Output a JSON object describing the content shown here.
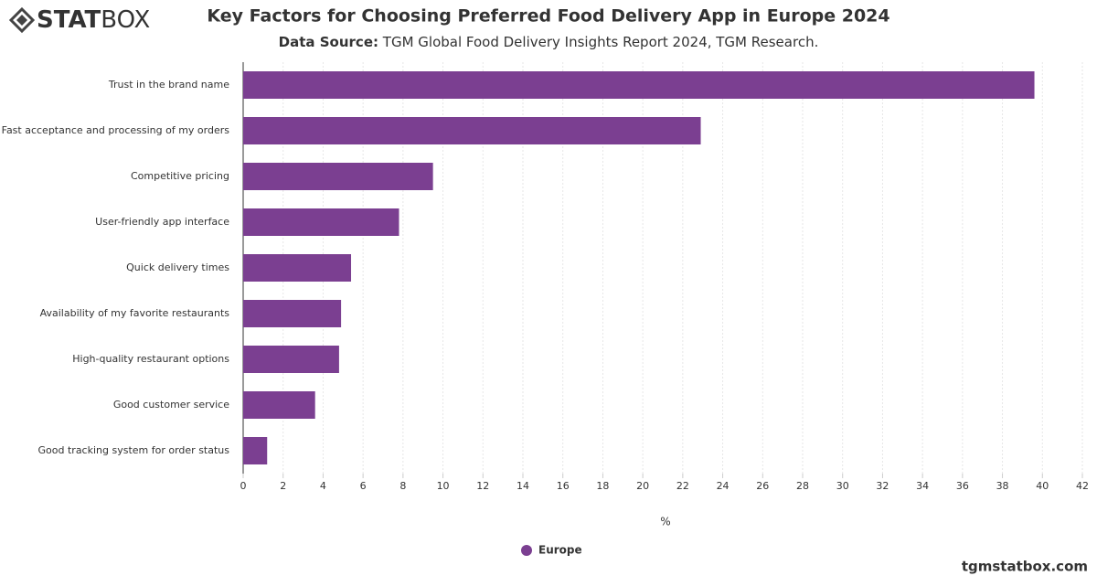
{
  "logo": {
    "bold": "STAT",
    "light": "BOX"
  },
  "footer": "tgmstatbox.com",
  "chart_data": {
    "type": "bar",
    "orientation": "horizontal",
    "title": "Key Factors for Choosing Preferred Food Delivery App in Europe 2024",
    "subtitle_label": "Data Source:",
    "subtitle": "TGM Global Food Delivery Insights Report 2024, TGM Research.",
    "x_label": "%",
    "categories": [
      "Trust in the brand name",
      "Fast acceptance and processing of my orders",
      "Competitive pricing",
      "User-friendly app interface",
      "Quick delivery times",
      "Availability of my favorite restaurants",
      "High-quality restaurant options",
      "Good customer service",
      "Good tracking system for order status"
    ],
    "series": [
      {
        "name": "Europe",
        "color": "#7b3f91",
        "values": [
          39.6,
          22.9,
          9.5,
          7.8,
          5.4,
          4.9,
          4.8,
          3.6,
          1.2
        ]
      }
    ],
    "xlim": [
      0,
      42
    ],
    "xticks": [
      0,
      2,
      4,
      6,
      8,
      10,
      12,
      14,
      16,
      18,
      20,
      22,
      24,
      26,
      28,
      30,
      32,
      34,
      36,
      38,
      40,
      42
    ],
    "grid": true,
    "legend": "bottom"
  }
}
